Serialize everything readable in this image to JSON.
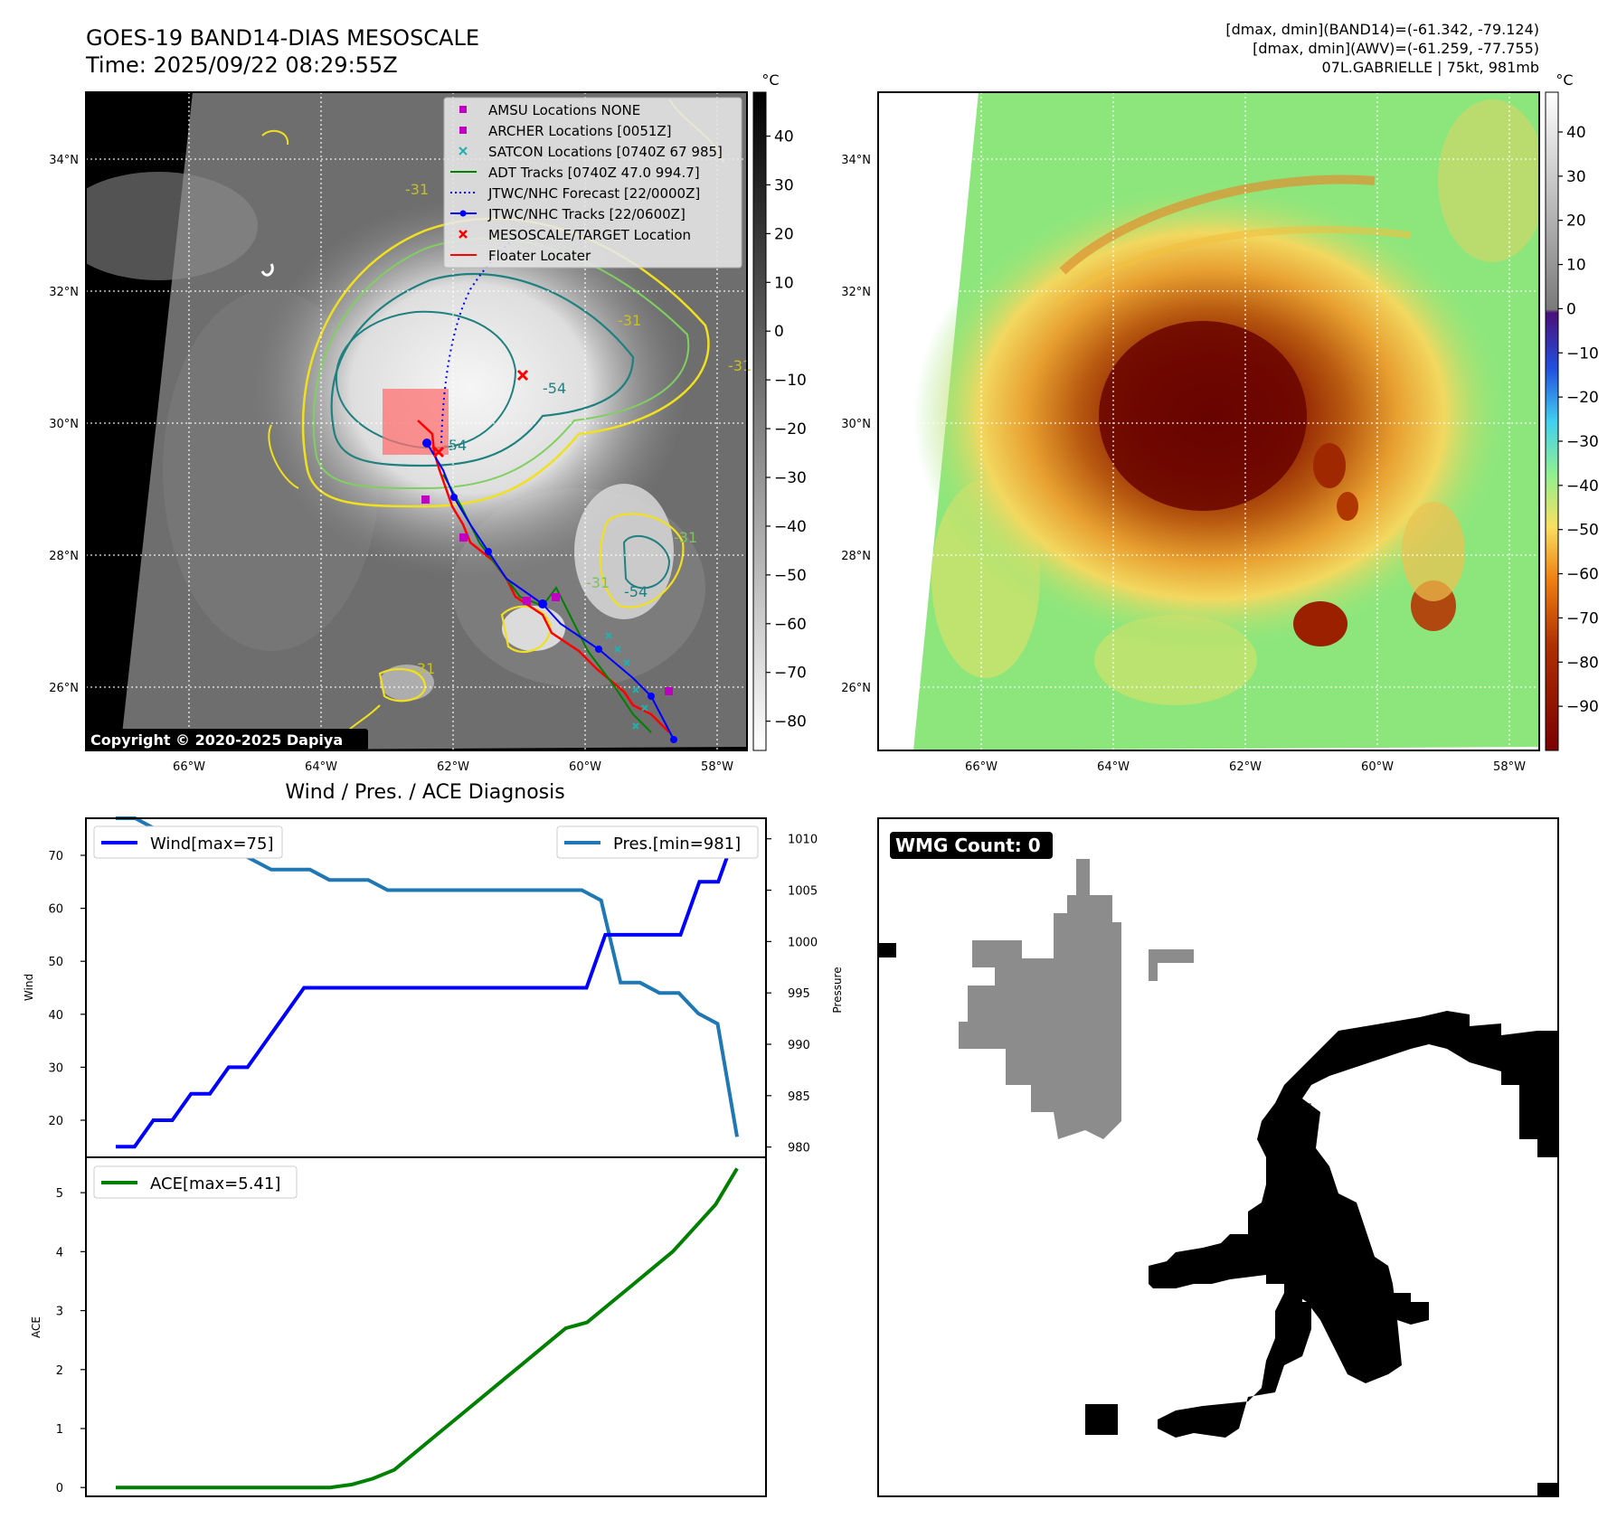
{
  "header": {
    "title": "GOES-19 BAND14-DIAS MESOSCALE",
    "time": "Time: 2025/09/22 08:29:55Z",
    "info_line1": "[dmax, dmin](BAND14)=(-61.342, -79.124)",
    "info_line2": "[dmax, dmin](AWV)=(-61.259, -77.755)",
    "info_line3": "07L.GABRIELLE | 75kt, 981mb"
  },
  "map": {
    "lon_ticks": [
      "66°W",
      "64°W",
      "62°W",
      "60°W",
      "58°W"
    ],
    "lat_ticks": [
      "34°N",
      "32°N",
      "30°N",
      "28°N",
      "26°N"
    ],
    "copyright": "Copyright © 2020-2025 Dapiya",
    "contour_labels": [
      "-31",
      "-31",
      "-31",
      "-31",
      "-31",
      "-54",
      "-54",
      "-54",
      "-31"
    ],
    "legend": [
      {
        "label": "AMSU Locations NONE",
        "marker": "square",
        "color": "#c000c0"
      },
      {
        "label": "ARCHER Locations [0051Z]",
        "marker": "square",
        "color": "#c000c0"
      },
      {
        "label": "SATCON Locations [0740Z 67 985]",
        "marker": "x",
        "color": "#20b0b0"
      },
      {
        "label": "ADT Tracks [0740Z 47.0 994.7]",
        "marker": "line",
        "color": "#008000"
      },
      {
        "label": "JTWC/NHC Forecast [22/0000Z]",
        "marker": "dotted",
        "color": "#0000ff"
      },
      {
        "label": "JTWC/NHC Tracks [22/0600Z]",
        "marker": "line-dot",
        "color": "#0000ff"
      },
      {
        "label": "MESOSCALE/TARGET Location",
        "marker": "x",
        "color": "#ff0000"
      },
      {
        "label": "Floater Locater",
        "marker": "line",
        "color": "#ff0000"
      }
    ],
    "colorbar1": {
      "unit": "°C",
      "ticks": [
        "40",
        "30",
        "20",
        "10",
        "0",
        "−10",
        "−20",
        "−30",
        "−40",
        "−50",
        "−60",
        "−70",
        "−80"
      ]
    },
    "colorbar2": {
      "unit": "°C",
      "ticks": [
        "40",
        "30",
        "20",
        "10",
        "0",
        "−10",
        "−20",
        "−30",
        "−40",
        "−50",
        "−60",
        "−70",
        "−80",
        "−90"
      ]
    }
  },
  "diagnosis": {
    "title": "Wind / Pres. / ACE Diagnosis",
    "wind_legend": "Wind[max=75]",
    "pres_legend": "Pres.[min=981]",
    "ace_legend": "ACE[max=5.41]",
    "wind_ylabel": "Wind",
    "pres_ylabel": "Pressure",
    "ace_ylabel": "ACE",
    "wind_ticks": [
      "70",
      "60",
      "50",
      "40",
      "30",
      "20"
    ],
    "pres_ticks": [
      "1010",
      "1005",
      "1000",
      "995",
      "990",
      "985",
      "980"
    ],
    "ace_ticks": [
      "5",
      "4",
      "3",
      "2",
      "1",
      "0"
    ]
  },
  "wmg": {
    "label": "WMG Count: 0"
  },
  "chart_data": [
    {
      "type": "line",
      "title": "Wind / Pres. / ACE Diagnosis",
      "ylabel": "Wind",
      "ylim": [
        13,
        77
      ],
      "series": [
        {
          "name": "Wind[max=75]",
          "color": "#0000ff",
          "values": [
            15,
            15,
            20,
            20,
            25,
            25,
            30,
            30,
            35,
            40,
            45,
            45,
            45,
            45,
            45,
            45,
            45,
            45,
            45,
            45,
            45,
            45,
            45,
            45,
            45,
            45,
            55,
            55,
            55,
            55,
            55,
            65,
            65,
            75
          ]
        }
      ]
    },
    {
      "type": "line",
      "ylabel": "Pressure",
      "ylim": [
        979,
        1012
      ],
      "series": [
        {
          "name": "Pres.[min=981]",
          "color": "#1f77b4",
          "values": [
            1012,
            1012,
            1011,
            1011,
            1010,
            1010,
            1009,
            1008,
            1007,
            1007,
            1007,
            1006,
            1006,
            1006,
            1005,
            1005,
            1005,
            1005,
            1005,
            1005,
            1005,
            1005,
            1005,
            1005,
            1005,
            1004,
            996,
            996,
            995,
            995,
            993,
            992,
            981
          ]
        }
      ]
    },
    {
      "type": "line",
      "ylabel": "ACE",
      "ylim": [
        -0.15,
        5.6
      ],
      "series": [
        {
          "name": "ACE[max=5.41]",
          "color": "#008000",
          "values": [
            0,
            0,
            0,
            0,
            0,
            0,
            0,
            0,
            0,
            0,
            0,
            0.05,
            0.15,
            0.3,
            0.6,
            0.9,
            1.2,
            1.5,
            1.8,
            2.1,
            2.4,
            2.7,
            2.8,
            3.1,
            3.4,
            3.7,
            4.0,
            4.4,
            4.8,
            5.41
          ]
        }
      ]
    }
  ]
}
